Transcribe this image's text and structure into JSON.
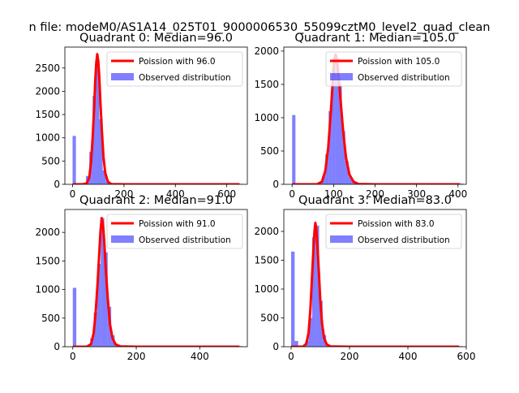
{
  "figure": {
    "suptitle": "n file: modeM0/AS1A14_025T01_9000006530_55099cztM0_level2_quad_clean"
  },
  "colors": {
    "poisson": "#ff0000",
    "observed": "#0000ff",
    "observed_alpha": 0.5,
    "axes": "#000000",
    "background": "#ffffff"
  },
  "chart_data": [
    {
      "type": "bar",
      "title": "Quadrant 0: Median=96.0",
      "legend_position": "top-right",
      "xlim": [
        -30,
        680
      ],
      "ylim": [
        0,
        2950
      ],
      "xticks": [
        0,
        200,
        400,
        600
      ],
      "yticks": [
        0,
        500,
        1000,
        1500,
        2000,
        2500
      ],
      "hist_bin_width": 13,
      "series": [
        {
          "name": "Poission with 96.0",
          "kind": "line",
          "color": "#ff0000",
          "x": [
            0,
            40,
            55,
            65,
            72,
            78,
            84,
            88,
            92,
            96,
            100,
            104,
            108,
            114,
            120,
            127,
            137,
            150,
            200,
            300,
            400,
            500,
            650
          ],
          "y": [
            0,
            0,
            20,
            150,
            480,
            1000,
            1650,
            2200,
            2600,
            2800,
            2650,
            2300,
            1800,
            1150,
            600,
            250,
            60,
            5,
            0,
            0,
            0,
            0,
            0
          ]
        },
        {
          "name": "Observed distribution",
          "kind": "hist",
          "color": "#0000ff",
          "x": [
            0,
            13,
            26,
            39,
            52,
            65,
            78,
            91,
            104,
            117,
            130,
            143,
            156,
            650
          ],
          "y": [
            1040,
            0,
            0,
            20,
            180,
            700,
            1900,
            2550,
            1400,
            300,
            60,
            20,
            5,
            10
          ]
        }
      ]
    },
    {
      "type": "bar",
      "title": "Quadrant 1: Median=105.0",
      "legend_position": "top-right",
      "xlim": [
        -20,
        420
      ],
      "ylim": [
        0,
        2060
      ],
      "xticks": [
        0,
        100,
        200,
        300,
        400
      ],
      "yticks": [
        0,
        500,
        1000,
        1500,
        2000
      ],
      "hist_bin_width": 8,
      "series": [
        {
          "name": "Poission with 105.0",
          "kind": "line",
          "color": "#ff0000",
          "x": [
            0,
            60,
            72,
            80,
            87,
            93,
            98,
            102,
            105,
            108,
            112,
            117,
            123,
            130,
            138,
            148,
            160,
            200,
            300,
            405
          ],
          "y": [
            0,
            0,
            40,
            200,
            550,
            1050,
            1550,
            1880,
            1950,
            1880,
            1650,
            1250,
            800,
            400,
            150,
            40,
            5,
            0,
            0,
            0
          ]
        },
        {
          "name": "Observed distribution",
          "kind": "hist",
          "color": "#0000ff",
          "x": [
            0,
            8,
            16,
            24,
            32,
            40,
            48,
            56,
            64,
            72,
            80,
            88,
            96,
            104,
            112,
            120,
            128,
            136,
            144,
            152,
            405
          ],
          "y": [
            1040,
            0,
            0,
            0,
            0,
            0,
            0,
            0,
            20,
            120,
            450,
            1100,
            1750,
            1900,
            1500,
            800,
            350,
            120,
            40,
            10,
            10
          ]
        }
      ]
    },
    {
      "type": "bar",
      "title": "Quadrant 2: Median=91.0",
      "legend_position": "top-right",
      "xlim": [
        -25,
        550
      ],
      "ylim": [
        0,
        2400
      ],
      "xticks": [
        0,
        200,
        400
      ],
      "yticks": [
        0,
        500,
        1000,
        1500,
        2000
      ],
      "hist_bin_width": 11,
      "series": [
        {
          "name": "Poission with 91.0",
          "kind": "line",
          "color": "#ff0000",
          "x": [
            0,
            45,
            58,
            66,
            72,
            78,
            83,
            87,
            91,
            95,
            99,
            104,
            110,
            117,
            125,
            135,
            150,
            200,
            300,
            400,
            525
          ],
          "y": [
            0,
            0,
            50,
            250,
            600,
            1100,
            1600,
            2000,
            2250,
            2150,
            1850,
            1350,
            850,
            400,
            150,
            40,
            5,
            0,
            0,
            0,
            0
          ]
        },
        {
          "name": "Observed distribution",
          "kind": "hist",
          "color": "#0000ff",
          "x": [
            0,
            11,
            22,
            33,
            44,
            55,
            66,
            77,
            88,
            99,
            110,
            121,
            132,
            143,
            525
          ],
          "y": [
            1030,
            0,
            0,
            0,
            30,
            150,
            600,
            1450,
            2250,
            1650,
            700,
            200,
            50,
            10,
            10
          ]
        }
      ]
    },
    {
      "type": "bar",
      "title": "Quadrant 3: Median=83.0",
      "legend_position": "top-right",
      "xlim": [
        -25,
        600
      ],
      "ylim": [
        0,
        2380
      ],
      "xticks": [
        0,
        200,
        400,
        600
      ],
      "yticks": [
        0,
        500,
        1000,
        1500,
        2000
      ],
      "hist_bin_width": 12,
      "series": [
        {
          "name": "Poission with 83.0",
          "kind": "line",
          "color": "#ff0000",
          "x": [
            0,
            40,
            52,
            60,
            66,
            71,
            76,
            80,
            83,
            86,
            90,
            95,
            100,
            106,
            113,
            122,
            135,
            200,
            300,
            400,
            575
          ],
          "y": [
            0,
            0,
            50,
            250,
            650,
            1150,
            1650,
            2000,
            2150,
            2050,
            1750,
            1300,
            800,
            400,
            150,
            40,
            5,
            0,
            0,
            0,
            0
          ]
        },
        {
          "name": "Observed distribution",
          "kind": "hist",
          "color": "#0000ff",
          "x": [
            0,
            12,
            24,
            36,
            48,
            60,
            72,
            84,
            96,
            108,
            120,
            132,
            575
          ],
          "y": [
            1650,
            100,
            0,
            10,
            100,
            500,
            1900,
            2100,
            800,
            200,
            40,
            10,
            10
          ]
        }
      ]
    }
  ]
}
